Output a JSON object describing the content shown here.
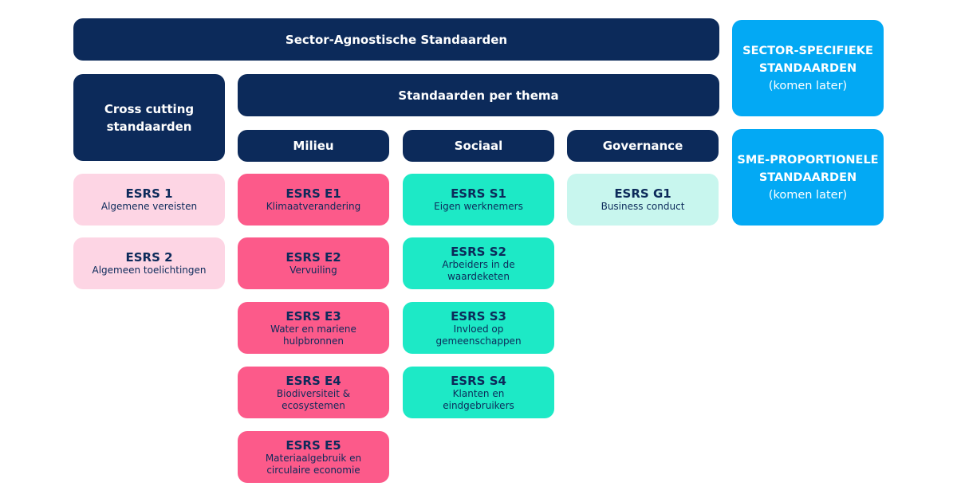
{
  "top": {
    "agnostic": "Sector-Agnostische Standaarden",
    "per_thema": "Standaarden per thema"
  },
  "cross_cutting": {
    "line1": "Cross cutting",
    "line2": "standaarden"
  },
  "themes": {
    "milieu": "Milieu",
    "sociaal": "Sociaal",
    "governance": "Governance"
  },
  "sector_specific": {
    "line1": "SECTOR-SPECIFIEKE",
    "line2": "STANDAARDEN",
    "note": "(komen later)"
  },
  "sme": {
    "line1": "SME-PROPORTIONELE",
    "line2": "STANDAARDEN",
    "note": "(komen later)"
  },
  "cross_cards": [
    {
      "code": "ESRS 1",
      "desc": "Algemene vereisten"
    },
    {
      "code": "ESRS 2",
      "desc": "Algemeen toelichtingen"
    }
  ],
  "milieu_cards": [
    {
      "code": "ESRS E1",
      "desc": "Klimaatverandering"
    },
    {
      "code": "ESRS E2",
      "desc": "Vervuiling"
    },
    {
      "code": "ESRS E3",
      "desc": "Water en mariene hulpbronnen"
    },
    {
      "code": "ESRS E4",
      "desc": "Biodiversiteit & ecosystemen"
    },
    {
      "code": "ESRS E5",
      "desc": "Materiaalgebruik en circulaire economie"
    }
  ],
  "sociaal_cards": [
    {
      "code": "ESRS S1",
      "desc": "Eigen werknemers"
    },
    {
      "code": "ESRS S2",
      "desc": "Arbeiders in de waardeketen"
    },
    {
      "code": "ESRS S3",
      "desc": "Invloed op gemeenschappen"
    },
    {
      "code": "ESRS S4",
      "desc": "Klanten en eindgebruikers"
    }
  ],
  "governance_cards": [
    {
      "code": "ESRS G1",
      "desc": "Business conduct"
    }
  ],
  "colors": {
    "navy": "#0c2a5a",
    "sky": "#03a9f4",
    "pink_light": "#fdd5e4",
    "pink": "#fc5a8a",
    "teal": "#1de9c6",
    "teal_light": "#c8f6ee"
  }
}
